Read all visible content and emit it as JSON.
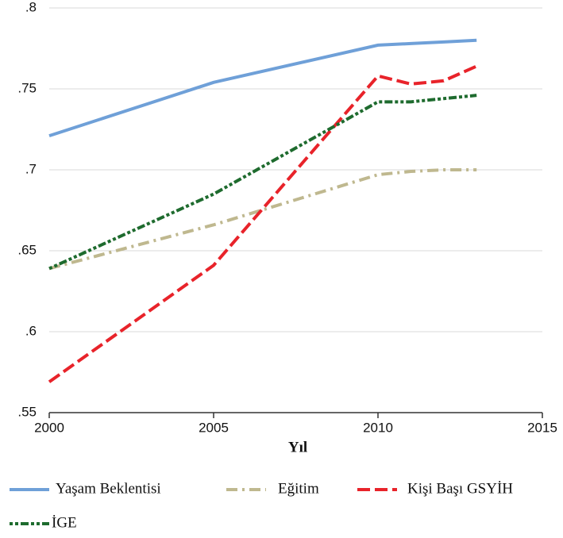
{
  "chart_data": {
    "type": "line",
    "x_label": "Yıl",
    "xlim": [
      2000,
      2015
    ],
    "xticks": [
      2000,
      2005,
      2010,
      2015
    ],
    "ylim": [
      0.55,
      0.8
    ],
    "yticks": [
      {
        "value": 0.55,
        "label": ".55"
      },
      {
        "value": 0.6,
        "label": ".6"
      },
      {
        "value": 0.65,
        "label": ".65"
      },
      {
        "value": 0.7,
        "label": ".7"
      },
      {
        "value": 0.75,
        "label": ".75"
      },
      {
        "value": 0.8,
        "label": ".8"
      }
    ],
    "grid": true,
    "legend": "bottom",
    "series": [
      {
        "name": "Yaşam Beklentisi",
        "color": "#6fa0d8",
        "dash": "solid",
        "x": [
          2000,
          2005,
          2010,
          2011,
          2012,
          2013
        ],
        "values": [
          0.721,
          0.754,
          0.777,
          0.778,
          0.779,
          0.78
        ]
      },
      {
        "name": "Eğitim",
        "color": "#bfb88f",
        "dash": "dashdot",
        "x": [
          2000,
          2005,
          2010,
          2011,
          2012,
          2013
        ],
        "values": [
          0.639,
          0.666,
          0.697,
          0.699,
          0.7,
          0.7
        ]
      },
      {
        "name": "Kişi Başı GSYİH",
        "color": "#e8232a",
        "dash": "longdash",
        "x": [
          2000,
          2005,
          2010,
          2011,
          2012,
          2013
        ],
        "values": [
          0.569,
          0.641,
          0.758,
          0.753,
          0.755,
          0.764
        ]
      },
      {
        "name": "İGE",
        "color": "#1e6b2e",
        "dash": "dotdash",
        "x": [
          2000,
          2005,
          2010,
          2011,
          2012,
          2013
        ],
        "values": [
          0.639,
          0.685,
          0.742,
          0.742,
          0.744,
          0.746
        ]
      }
    ]
  }
}
